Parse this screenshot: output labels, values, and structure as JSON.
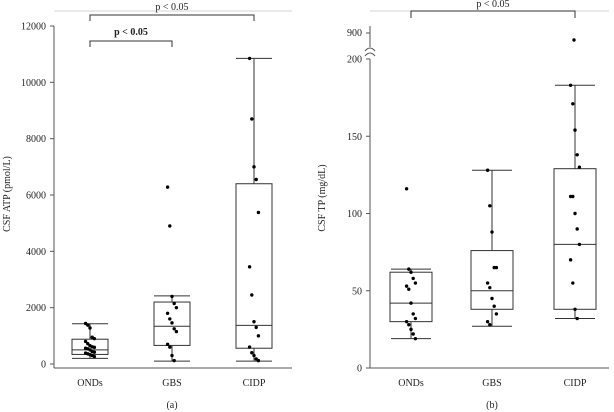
{
  "chart_data": [
    {
      "type": "box",
      "panel_label": "(a)",
      "title": "",
      "xlabel": "",
      "ylabel": "CSF ATP (pmol/L)",
      "ylim": [
        0,
        12000
      ],
      "yticks": [
        0,
        2000,
        4000,
        6000,
        8000,
        10000,
        12000
      ],
      "ytick_labels": [
        "0",
        "2000",
        "4000",
        "6000",
        "8000",
        "10000",
        "12000"
      ],
      "categories": [
        "ONDs",
        "GBS",
        "CIDP"
      ],
      "boxes": [
        {
          "min": 200,
          "q1": 340,
          "median": 500,
          "q3": 880,
          "max": 1430
        },
        {
          "min": 100,
          "q1": 660,
          "median": 1340,
          "q3": 2200,
          "max": 2420
        },
        {
          "min": 100,
          "q1": 560,
          "median": 1370,
          "q3": 6400,
          "max": 10850
        }
      ],
      "points": [
        [
          1440,
          1380,
          1280,
          950,
          900,
          800,
          720,
          650,
          610,
          590,
          560,
          540,
          500,
          440,
          420,
          390,
          360,
          330,
          300,
          260
        ],
        [
          6280,
          4900,
          2400,
          2150,
          2000,
          1800,
          1600,
          1460,
          1250,
          1150,
          700,
          600,
          300,
          120
        ],
        [
          10850,
          8700,
          7000,
          6550,
          5380,
          3450,
          2450,
          1500,
          1300,
          1000,
          600,
          400,
          300,
          180,
          120
        ]
      ],
      "annotations": [
        {
          "text": "p < 0.05",
          "bold": false,
          "from": "ONDs",
          "to": "CIDP"
        },
        {
          "text": "p < 0.05",
          "bold": true,
          "from": "ONDs",
          "to": "GBS"
        }
      ]
    },
    {
      "type": "box",
      "panel_label": "(b)",
      "title": "",
      "xlabel": "",
      "ylabel": "CSF TP (mg/dL)",
      "ylim": [
        0,
        200
      ],
      "axis_break": true,
      "yticks": [
        0,
        50,
        100,
        150,
        200
      ],
      "ytick_labels": [
        "0",
        "50",
        "100",
        "150",
        "200"
      ],
      "upper_tick_label": "900",
      "categories": [
        "ONDs",
        "GBS",
        "CIDP"
      ],
      "boxes": [
        {
          "min": 19,
          "q1": 30,
          "median": 42,
          "q3": 62,
          "max": 64
        },
        {
          "min": 27,
          "q1": 38,
          "median": 50,
          "q3": 76,
          "max": 128
        },
        {
          "min": 32,
          "q1": 38,
          "median": 80,
          "q3": 129,
          "max": 183
        }
      ],
      "points": [
        [
          116,
          64,
          62,
          58,
          55,
          53,
          51,
          42,
          35,
          32,
          30,
          28,
          25,
          22,
          19
        ],
        [
          128,
          105,
          88,
          65,
          65,
          55,
          52,
          45,
          40,
          35,
          30,
          28
        ],
        [
          183,
          171,
          154,
          138,
          130,
          111,
          111,
          100,
          90,
          80,
          70,
          55,
          38,
          32
        ]
      ],
      "outlier_above_break": [
        null,
        null,
        865
      ],
      "annotations": [
        {
          "text": "p < 0.05",
          "bold": false,
          "from": "ONDs",
          "to": "CIDP"
        }
      ]
    }
  ]
}
